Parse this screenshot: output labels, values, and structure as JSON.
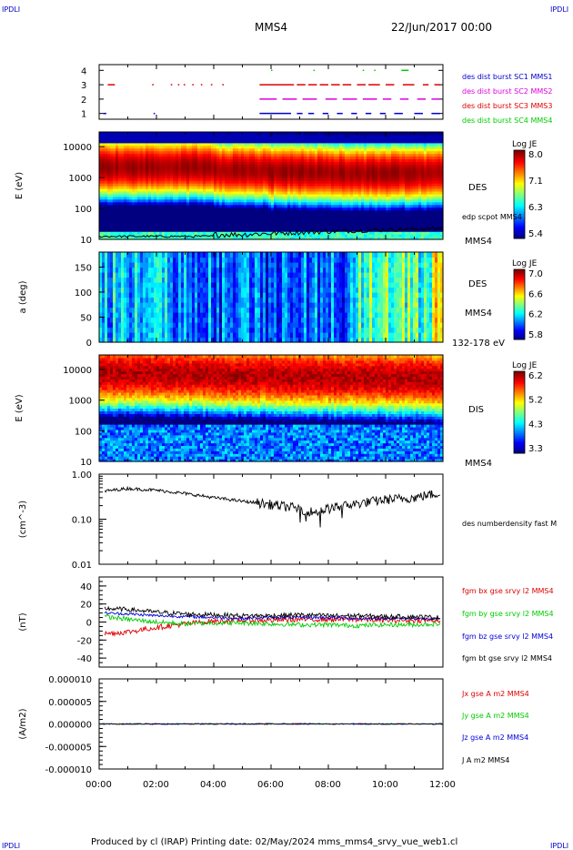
{
  "header": {
    "corner_tl": "IPDLI",
    "corner_tr": "IPDLI",
    "corner_bl": "IPDLI",
    "corner_br": "IPDLI",
    "spacecraft": "MMS4",
    "date": "22/Jun/2017 00:00",
    "footer": "Produced by cl (IRAP)   Printing date: 02/May/2024   mms_mms4_srvy_vue_web1.cl"
  },
  "colors": {
    "accent": "#0000cc",
    "red": "#dd0000",
    "green": "#00cc00",
    "blue": "#0000dd",
    "magenta": "#dd00dd",
    "black": "#000000"
  },
  "chart_data": [
    {
      "type": "scatter",
      "panel": "burst-availability",
      "x_ticks": [
        "00:00",
        "02:00",
        "04:00",
        "06:00",
        "08:00",
        "10:00",
        "12:00"
      ],
      "y_ticks": [
        "1",
        "2",
        "3",
        "4"
      ],
      "ylim": [
        0.6,
        4.4
      ],
      "legend": [
        {
          "label": "des dist burst SC1 MMS1",
          "color": "#0000cc"
        },
        {
          "label": "des dist burst SC2 MMS2",
          "color": "#dd00dd"
        },
        {
          "label": "des dist burst SC3 MMS3",
          "color": "#dd0000"
        },
        {
          "label": "des dist burst SC4 MMS4",
          "color": "#00cc00"
        }
      ],
      "series": [
        {
          "name": "des dist burst SC1 MMS1",
          "y": 1,
          "color": "#0000cc",
          "intervals": [
            [
              0.15,
              0.25
            ],
            [
              1.9,
              1.95
            ],
            [
              5.6,
              6.7
            ],
            [
              6.9,
              7.1
            ],
            [
              7.3,
              7.5
            ],
            [
              7.8,
              8.0
            ],
            [
              8.3,
              8.5
            ],
            [
              8.8,
              9.0
            ],
            [
              9.3,
              9.5
            ],
            [
              9.8,
              10.0
            ],
            [
              10.3,
              10.6
            ],
            [
              11.0,
              11.3
            ],
            [
              11.6,
              11.9
            ]
          ]
        },
        {
          "name": "des dist burst SC2 MMS2",
          "y": 2,
          "color": "#dd00dd",
          "intervals": [
            [
              5.6,
              6.2
            ],
            [
              6.4,
              6.9
            ],
            [
              7.1,
              7.6
            ],
            [
              7.9,
              8.3
            ],
            [
              8.5,
              9.0
            ],
            [
              9.2,
              9.7
            ],
            [
              9.9,
              10.2
            ],
            [
              10.5,
              10.8
            ],
            [
              11.1,
              11.4
            ],
            [
              11.6,
              11.9
            ]
          ]
        },
        {
          "name": "des dist burst SC3 MMS3",
          "y": 3,
          "color": "#dd0000",
          "intervals": [
            [
              0.3,
              0.55
            ],
            [
              1.85,
              1.9
            ],
            [
              2.5,
              2.55
            ],
            [
              2.75,
              2.8
            ],
            [
              2.95,
              3.0
            ],
            [
              3.25,
              3.3
            ],
            [
              3.55,
              3.6
            ],
            [
              3.9,
              3.95
            ],
            [
              4.3,
              4.35
            ],
            [
              5.6,
              6.8
            ],
            [
              6.9,
              7.2
            ],
            [
              7.3,
              7.6
            ],
            [
              7.7,
              8.0
            ],
            [
              8.1,
              8.4
            ],
            [
              8.5,
              8.8
            ],
            [
              9.0,
              9.3
            ],
            [
              9.4,
              9.8
            ],
            [
              10.0,
              10.3
            ],
            [
              10.6,
              11.0
            ],
            [
              11.3,
              11.5
            ],
            [
              11.7,
              11.9
            ]
          ]
        },
        {
          "name": "des dist burst SC4 MMS4",
          "y": 4,
          "color": "#00cc00",
          "intervals": [
            [
              6.0,
              6.04
            ],
            [
              7.48,
              7.52
            ],
            [
              9.2,
              9.24
            ],
            [
              9.6,
              9.64
            ],
            [
              10.55,
              10.8
            ]
          ]
        }
      ]
    },
    {
      "type": "heatmap",
      "panel": "des-energy-spectrogram",
      "ylabel": "E (eV)",
      "y_scale": "log",
      "ylim": [
        10,
        30000
      ],
      "y_ticks": [
        "10",
        "100",
        "1000",
        "10000"
      ],
      "x_ticks": [
        "00:00",
        "02:00",
        "04:00",
        "06:00",
        "08:00",
        "10:00",
        "12:00"
      ],
      "colorbar": {
        "title": "Log JE",
        "ticks": [
          "8.0",
          "7.1",
          "6.3",
          "5.4"
        ],
        "range": [
          5.4,
          8.0
        ]
      },
      "right_labels": [
        "DES",
        "edp scpot MMS4",
        "MMS4"
      ],
      "peak_energy_eV": [
        2000,
        2000,
        1600,
        1400,
        1300,
        1300,
        1400
      ]
    },
    {
      "type": "heatmap",
      "panel": "des-pitch-angle",
      "ylabel": "a (deg)",
      "ylim": [
        0,
        180
      ],
      "y_ticks": [
        "0",
        "50",
        "100",
        "150"
      ],
      "x_ticks": [
        "00:00",
        "02:00",
        "04:00",
        "06:00",
        "08:00",
        "10:00",
        "12:00"
      ],
      "colorbar": {
        "title": "Log JE",
        "ticks": [
          "7.0",
          "6.6",
          "6.2",
          "5.8"
        ],
        "range": [
          5.8,
          7.0
        ]
      },
      "right_labels": [
        "DES",
        "MMS4",
        "132-178 eV"
      ]
    },
    {
      "type": "heatmap",
      "panel": "dis-energy-spectrogram",
      "ylabel": "E (eV)",
      "y_scale": "log",
      "ylim": [
        10,
        30000
      ],
      "y_ticks": [
        "10",
        "100",
        "1000",
        "10000"
      ],
      "x_ticks": [
        "00:00",
        "02:00",
        "04:00",
        "06:00",
        "08:00",
        "10:00",
        "12:00"
      ],
      "colorbar": {
        "title": "Log JE",
        "ticks": [
          "6.2",
          "5.2",
          "4.3",
          "3.3"
        ],
        "range": [
          3.3,
          6.2
        ]
      },
      "right_labels": [
        "DIS",
        "MMS4"
      ]
    },
    {
      "type": "line",
      "panel": "density",
      "ylabel": "(cm^-3)",
      "y_scale": "log",
      "ylim": [
        0.01,
        1.0
      ],
      "y_ticks": [
        "1.00",
        "0.10",
        "0.01"
      ],
      "x_ticks": [
        "00:00",
        "02:00",
        "04:00",
        "06:00",
        "08:00",
        "10:00",
        "12:00"
      ],
      "series": [
        {
          "name": "des numberdensity fast M",
          "color": "#000000",
          "x": [
            0.2,
            1,
            2,
            3,
            4,
            5,
            6,
            7,
            7.5,
            8,
            9,
            10,
            11,
            11.9
          ],
          "y": [
            0.42,
            0.48,
            0.44,
            0.37,
            0.3,
            0.25,
            0.21,
            0.17,
            0.14,
            0.17,
            0.22,
            0.27,
            0.3,
            0.38
          ]
        }
      ]
    },
    {
      "type": "line",
      "panel": "magnetic-field",
      "ylabel": "(nT)",
      "ylim": [
        -50,
        50
      ],
      "y_ticks": [
        "40",
        "20",
        "0",
        "-20",
        "-40"
      ],
      "x_ticks": [
        "00:00",
        "02:00",
        "04:00",
        "06:00",
        "08:00",
        "10:00",
        "12:00"
      ],
      "series": [
        {
          "name": "fgm bx gse srvy l2 MMS4",
          "color": "#dd0000",
          "x": [
            0.2,
            1,
            2,
            3,
            4,
            5,
            6,
            7,
            8,
            9,
            10,
            11,
            11.9
          ],
          "y": [
            -13,
            -11,
            -6,
            -2,
            1,
            2,
            2,
            3,
            3,
            3,
            2,
            2,
            2
          ]
        },
        {
          "name": "fgm by gse srvy l2 MMS4",
          "color": "#00cc00",
          "x": [
            0.2,
            1,
            2,
            3,
            4,
            5,
            6,
            7,
            8,
            9,
            10,
            11,
            11.9
          ],
          "y": [
            6,
            3,
            0,
            -2,
            -1,
            -1,
            -2,
            -3,
            -3,
            -4,
            -3,
            -3,
            -2
          ]
        },
        {
          "name": "fgm bz gse srvy l2 MMS4",
          "color": "#0000dd",
          "x": [
            0.2,
            1,
            2,
            3,
            4,
            5,
            6,
            7,
            8,
            9,
            10,
            11,
            11.9
          ],
          "y": [
            10,
            9,
            7,
            6,
            5,
            4,
            5,
            5,
            5,
            4,
            4,
            4,
            3
          ]
        },
        {
          "name": "fgm bt gse srvy l2 MMS4",
          "color": "#000000",
          "x": [
            0.2,
            1,
            2,
            3,
            4,
            5,
            6,
            7,
            8,
            9,
            10,
            11,
            11.9
          ],
          "y": [
            15,
            14,
            11,
            9,
            8,
            7,
            7,
            8,
            7,
            7,
            6,
            6,
            5
          ]
        }
      ]
    },
    {
      "type": "line",
      "panel": "current-density",
      "ylabel": "(A/m2)",
      "ylim": [
        -1e-05,
        1e-05
      ],
      "y_ticks": [
        "0.000010",
        "0.000005",
        "0.000000",
        "-0.000005",
        "-0.000010"
      ],
      "x_ticks": [
        "00:00",
        "02:00",
        "04:00",
        "06:00",
        "08:00",
        "10:00",
        "12:00"
      ],
      "series": [
        {
          "name": "Jx gse A m2 MMS4",
          "color": "#dd0000",
          "x": [
            0,
            12
          ],
          "y": [
            0,
            0
          ]
        },
        {
          "name": "Jy gse A m2 MMS4",
          "color": "#00cc00",
          "x": [
            0,
            12
          ],
          "y": [
            0,
            0
          ]
        },
        {
          "name": "Jz gse A m2 MMS4",
          "color": "#0000dd",
          "x": [
            0,
            12
          ],
          "y": [
            0,
            0
          ]
        },
        {
          "name": "J A m2 MMS4",
          "color": "#000000",
          "x": [
            0,
            12
          ],
          "y": [
            0,
            0
          ]
        }
      ]
    }
  ]
}
